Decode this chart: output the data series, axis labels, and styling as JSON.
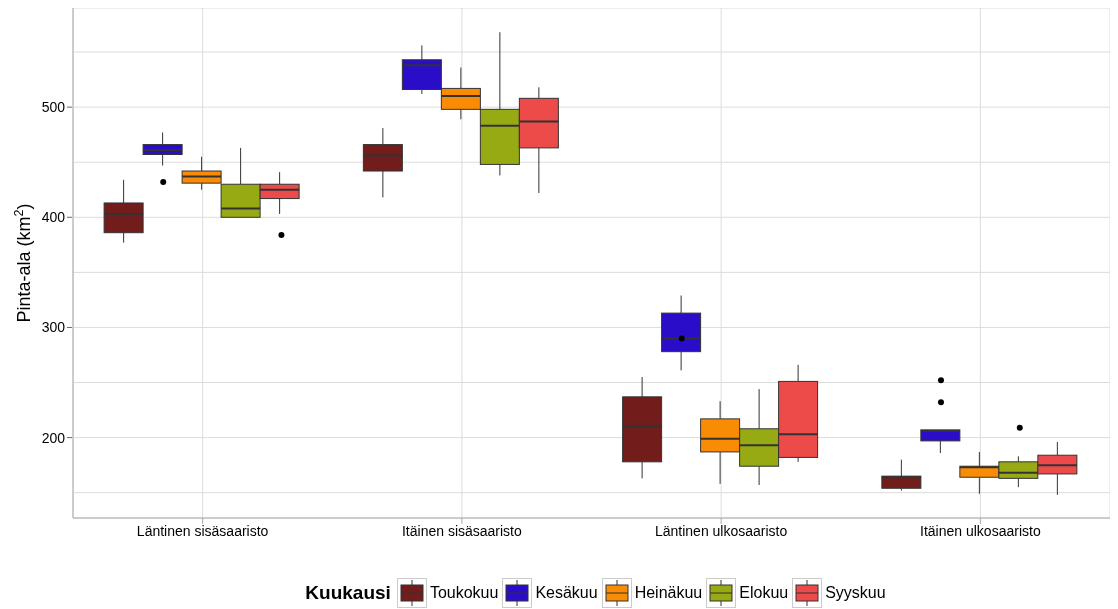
{
  "chart_data": {
    "type": "box",
    "ylabel": "Pinta-ala (km$^{2}$)",
    "legend_title": "Kuukausi",
    "legend": "bottom",
    "grid": true,
    "categories": [
      "Läntinen sisäsaaristo",
      "Itäinen sisäsaaristo",
      "Läntinen ulkosaaristo",
      "Itäinen ulkosaaristo"
    ],
    "ylim": [
      127,
      590
    ],
    "yticks": [
      {
        "value": 150,
        "label": null
      },
      200,
      {
        "value": 250,
        "label": null
      },
      300,
      {
        "value": 350,
        "label": null
      },
      400,
      {
        "value": 450,
        "label": null
      },
      500,
      {
        "value": 550,
        "label": null
      }
    ],
    "series": [
      {
        "name": "Toukokuu",
        "color": "#731c1c",
        "boxes": [
          {
            "low": 377,
            "q1": 386,
            "median": 403,
            "q3": 413,
            "high": 434
          },
          {
            "low": 418,
            "q1": 442,
            "median": 456,
            "q3": 466,
            "high": 481
          },
          {
            "low": 163,
            "q1": 178,
            "median": 210,
            "q3": 237,
            "high": 255
          },
          {
            "low": 152,
            "q1": 154,
            "median": 164,
            "q3": 165,
            "high": 180
          }
        ]
      },
      {
        "name": "Kesäkuu",
        "color": "#2a0dc8",
        "boxes": [
          {
            "low": 447,
            "q1": 457,
            "median": 461,
            "q3": 466,
            "high": 477,
            "outliers": [
              432
            ]
          },
          {
            "low": 512,
            "q1": 516,
            "median": 538,
            "q3": 543,
            "high": 556
          },
          {
            "low": 261,
            "q1": 278,
            "median": 290,
            "q3": 313,
            "high": 329,
            "outliers": [
              290
            ]
          },
          {
            "low": 186,
            "q1": 197,
            "median": 206,
            "q3": 207,
            "high": 207,
            "outliers": [
              232,
              252
            ]
          }
        ]
      },
      {
        "name": "Heinäkuu",
        "color": "#fa8c05",
        "boxes": [
          {
            "low": 425,
            "q1": 431,
            "median": 437,
            "q3": 442,
            "high": 455
          },
          {
            "low": 489,
            "q1": 498,
            "median": 510,
            "q3": 517,
            "high": 536
          },
          {
            "low": 158,
            "q1": 187,
            "median": 199,
            "q3": 217,
            "high": 233
          },
          {
            "low": 149,
            "q1": 164,
            "median": 173,
            "q3": 174,
            "high": 187
          }
        ]
      },
      {
        "name": "Elokuu",
        "color": "#97aa14",
        "boxes": [
          {
            "low": 400,
            "q1": 400,
            "median": 408,
            "q3": 430,
            "high": 463
          },
          {
            "low": 438,
            "q1": 448,
            "median": 483,
            "q3": 498,
            "high": 568
          },
          {
            "low": 157,
            "q1": 174,
            "median": 193,
            "q3": 208,
            "high": 244
          },
          {
            "low": 155,
            "q1": 163,
            "median": 168,
            "q3": 178,
            "high": 183,
            "outliers": [
              209
            ]
          }
        ]
      },
      {
        "name": "Syyskuu",
        "color": "#ed4a4a",
        "boxes": [
          {
            "low": 403,
            "q1": 417,
            "median": 425,
            "q3": 430,
            "high": 441,
            "outliers": [
              384
            ]
          },
          {
            "low": 422,
            "q1": 463,
            "median": 487,
            "q3": 508,
            "high": 518
          },
          {
            "low": 178,
            "q1": 182,
            "median": 203,
            "q3": 251,
            "high": 266
          },
          {
            "low": 148,
            "q1": 167,
            "median": 175,
            "q3": 184,
            "high": 196
          }
        ]
      }
    ]
  }
}
